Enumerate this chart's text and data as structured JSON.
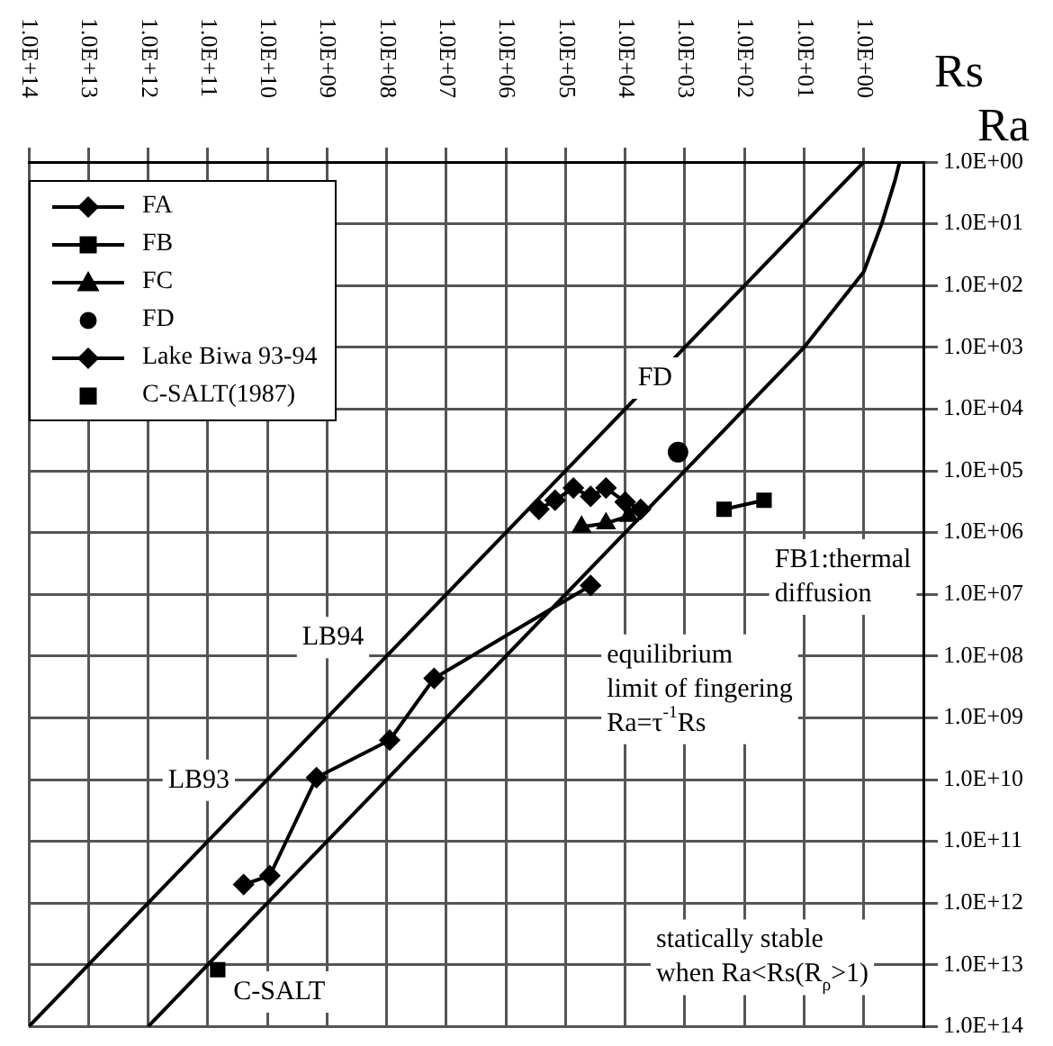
{
  "chart_data": {
    "type": "scatter",
    "xlabel": "Rs",
    "ylabel": "Ra",
    "log": "xy",
    "grid": true,
    "legend": "top left",
    "xlim": [
      100000000000000.0,
      0.1
    ],
    "ylim": [
      100000000000000.0,
      1
    ],
    "xticks": [
      {
        "value": 100000000000000.0,
        "label": "1.0E+14"
      },
      {
        "value": 10000000000000.0,
        "label": "1.0E+13"
      },
      {
        "value": 1000000000000.0,
        "label": "1.0E+12"
      },
      {
        "value": 100000000000.0,
        "label": "1.0E+11"
      },
      {
        "value": 10000000000.0,
        "label": "1.0E+10"
      },
      {
        "value": 1000000000.0,
        "label": "1.0E+09"
      },
      {
        "value": 100000000.0,
        "label": "1.0E+08"
      },
      {
        "value": 10000000.0,
        "label": "1.0E+07"
      },
      {
        "value": 1000000.0,
        "label": "1.0E+06"
      },
      {
        "value": 100000.0,
        "label": "1.0E+05"
      },
      {
        "value": 10000.0,
        "label": "1.0E+04"
      },
      {
        "value": 1000.0,
        "label": "1.0E+03"
      },
      {
        "value": 100,
        "label": "1.0E+02"
      },
      {
        "value": 10,
        "label": "1.0E+01"
      },
      {
        "value": 1,
        "label": "1.0E+00"
      }
    ],
    "yticks": [
      {
        "value": 1,
        "label": "1.0E+00"
      },
      {
        "value": 10,
        "label": "1.0E+01"
      },
      {
        "value": 100,
        "label": "1.0E+02"
      },
      {
        "value": 1000.0,
        "label": "1.0E+03"
      },
      {
        "value": 10000.0,
        "label": "1.0E+04"
      },
      {
        "value": 100000.0,
        "label": "1.0E+05"
      },
      {
        "value": 1000000.0,
        "label": "1.0E+06"
      },
      {
        "value": 10000000.0,
        "label": "1.0E+07"
      },
      {
        "value": 100000000.0,
        "label": "1.0E+08"
      },
      {
        "value": 1000000000.0,
        "label": "1.0E+09"
      },
      {
        "value": 10000000000.0,
        "label": "1.0E+10"
      },
      {
        "value": 100000000000.0,
        "label": "1.0E+11"
      },
      {
        "value": 1000000000000.0,
        "label": "1.0E+12"
      },
      {
        "value": 10000000000000.0,
        "label": "1.0E+13"
      },
      {
        "value": 100000000000000.0,
        "label": "1.0E+14"
      }
    ],
    "series": [
      {
        "name": "FA",
        "type": "line",
        "marker": "diamond",
        "color": "#000000",
        "x": [
          280000.0,
          150000.0,
          74000.0,
          38000.0,
          21000.0,
          10000.0,
          5500.0
        ],
        "values": [
          420000.0,
          300000.0,
          190000.0,
          260000.0,
          190000.0,
          320000.0,
          420000.0
        ]
      },
      {
        "name": "FB",
        "type": "line",
        "marker": "square",
        "color": "#000000",
        "x": [
          220,
          47
        ],
        "values": [
          420000.0,
          300000.0
        ]
      },
      {
        "name": "FC",
        "type": "line",
        "marker": "triangle",
        "color": "#000000",
        "x": [
          54000.0,
          21000.0,
          8700.0
        ],
        "values": [
          810000.0,
          710000.0,
          540000.0
        ]
      },
      {
        "name": "FD",
        "type": "scatter",
        "marker": "circle",
        "color": "#000000",
        "x": [
          1300.0
        ],
        "values": [
          50000.0
        ]
      },
      {
        "name": "Lake Biwa 93-94",
        "type": "line",
        "marker": "diamond",
        "color": "#000000",
        "x": [
          25000000000.0,
          9100000000.0,
          1500000000.0,
          89000000.0,
          16000000.0,
          38000.0
        ],
        "values": [
          500000000000.0,
          360000000000.0,
          9300000000.0,
          2300000000.0,
          230000000.0,
          7200000.0
        ]
      },
      {
        "name": "C-SALT(1987)",
        "type": "scatter",
        "marker": "square",
        "color": "#000000",
        "x": [
          68000000000.0
        ],
        "values": [
          12000000000000.0
        ]
      },
      {
        "type": "line",
        "marker": "none",
        "color": "#000000",
        "x": [
          100000000000000.0,
          1
        ],
        "values": [
          100000000000000.0,
          1
        ]
      },
      {
        "type": "line",
        "marker": "none",
        "color": "#000000",
        "x": [
          1000000000000.0,
          100,
          10,
          1,
          0.5,
          0.3,
          0.25
        ],
        "values": [
          100000000000000.0,
          10000.0,
          1000.0,
          60,
          10,
          2,
          1
        ]
      }
    ],
    "annotations": [
      "FD",
      "FB1:thermal\ndiffusion",
      "LB94",
      "LB93",
      "C-SALT",
      "equilibrium\nlimit of fingering\nRa=τ$^{-1}$Rs",
      "statically stable\nwhen Ra<Rs(R$_{ρ}$>1)"
    ]
  }
}
